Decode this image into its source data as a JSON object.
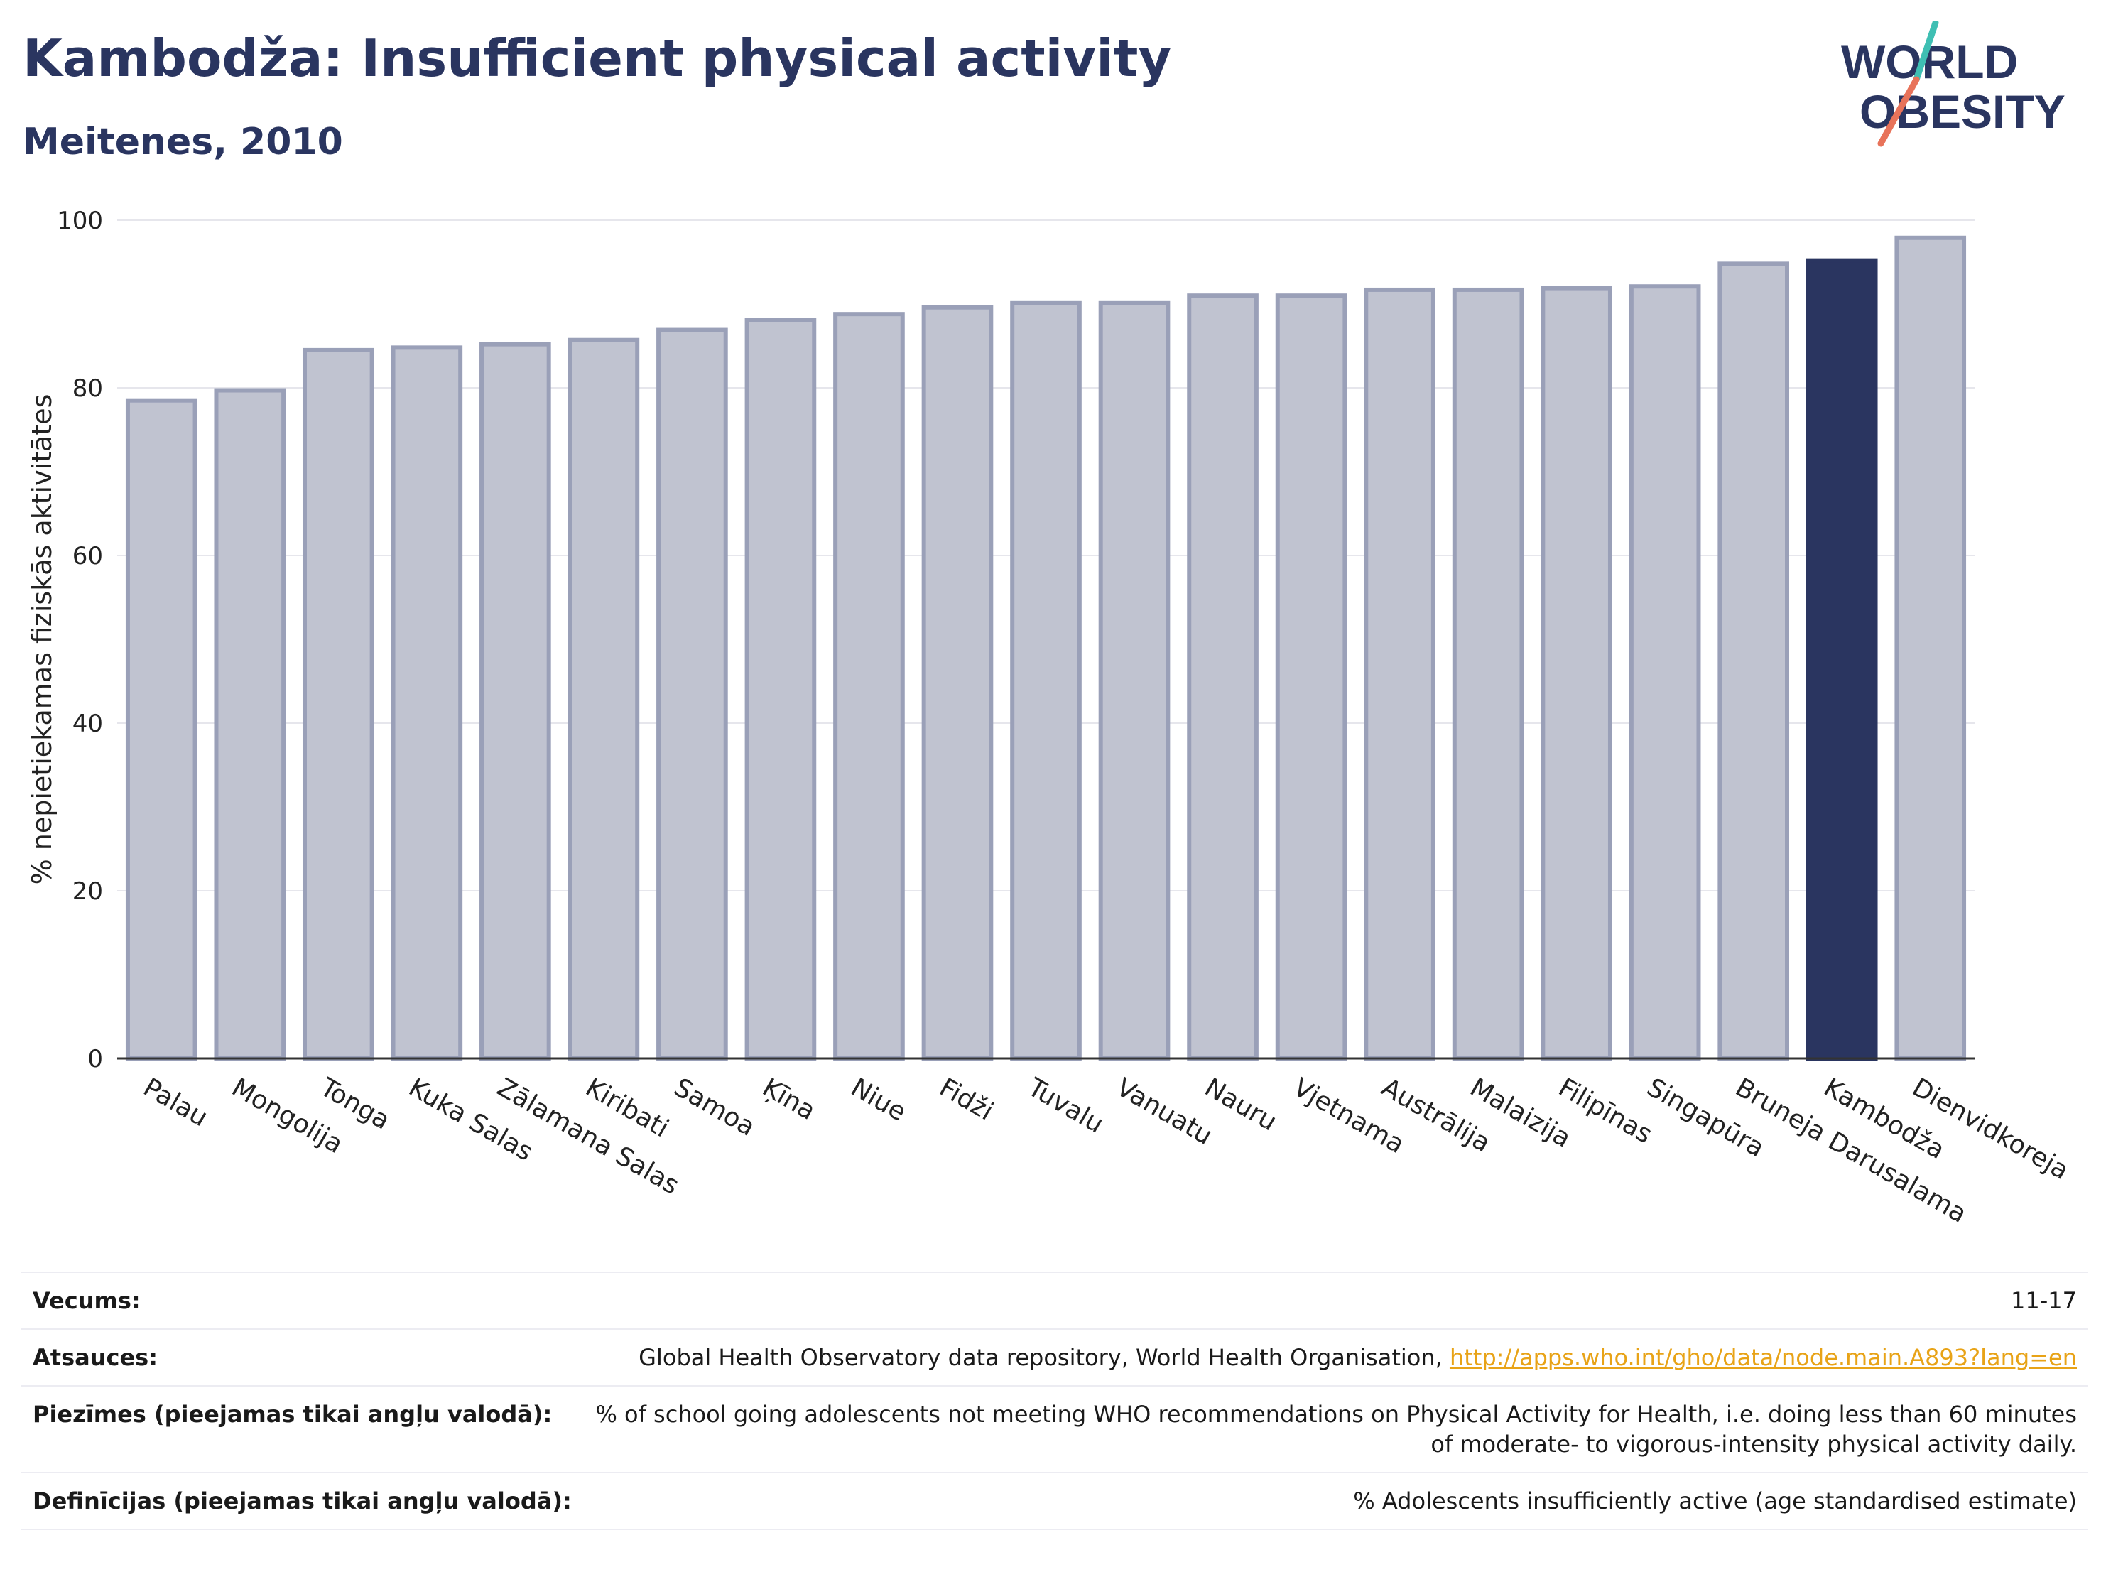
{
  "header": {
    "title": "Kambodža: Insufficient physical activity",
    "subtitle": "Meitenes, 2010"
  },
  "logo": {
    "line1": "WORLD",
    "line2": "OBESITY",
    "accent_colors": [
      "#3fbfb3",
      "#e8735a"
    ],
    "text_color": "#2a3560"
  },
  "chart_data": {
    "type": "bar",
    "title": "Kambodža: Insufficient physical activity",
    "subtitle": "Meitenes, 2010",
    "ylabel": "% nepietiekamas fiziskās aktivitātes",
    "xlabel": "",
    "ylim": [
      0,
      100
    ],
    "yticks": [
      0,
      20,
      40,
      60,
      80,
      100
    ],
    "grid": true,
    "categories": [
      "Palau",
      "Mongolija",
      "Tonga",
      "Kuka Salas",
      "Zālamana Salas",
      "Kiribati",
      "Samoa",
      "Ķīna",
      "Niue",
      "Fidži",
      "Tuvalu",
      "Vanuatu",
      "Nauru",
      "Vjetnama",
      "Austrālija",
      "Malaizija",
      "Filipīnas",
      "Singapūra",
      "Bruneja Darusalama",
      "Kambodža",
      "Dienvidkoreja"
    ],
    "values": [
      78.5,
      79.7,
      84.5,
      84.8,
      85.2,
      85.7,
      86.9,
      88.1,
      88.8,
      89.6,
      90.1,
      90.1,
      91.0,
      91.0,
      91.7,
      91.7,
      91.9,
      92.1,
      94.8,
      95.2,
      97.9
    ],
    "highlight": "Kambodža",
    "colors": {
      "bar": "#c0c3d0",
      "bar_border": "#9aa0b8",
      "highlight": "#2a3560"
    }
  },
  "info": [
    {
      "label": "Vecums:",
      "value": "11-17"
    },
    {
      "label": "Atsauces:",
      "value": "Global Health Observatory data repository, World Health Organisation, ",
      "link": "http://apps.who.int/gho/data/node.main.A893?lang=en"
    },
    {
      "label": "Piezīmes (pieejamas tikai angļu valodā):",
      "value": "% of school going adolescents not meeting WHO recommendations on Physical Activity for Health, i.e. doing less than 60 minutes of moderate- to vigorous-intensity physical activity daily."
    },
    {
      "label": "Definīcijas (pieejamas tikai angļu valodā):",
      "value": "% Adolescents insufficiently active (age standardised estimate)"
    }
  ]
}
